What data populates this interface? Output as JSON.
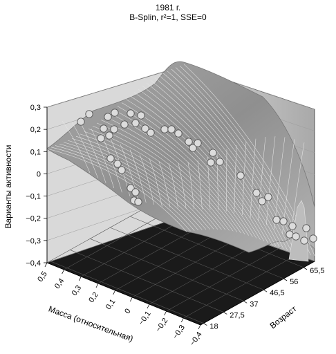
{
  "chart_data": {
    "type": "surface3d",
    "title": "1981 г.",
    "subtitle": "B-Splin, r²=1,  SSE=0",
    "zlabel": "Варианты активности",
    "xlabel": "Масса (относительная)",
    "ylabel": "Возраст",
    "z_ticks": [
      "0,3",
      "0,2",
      "0,1",
      "0",
      "−0,1",
      "−0,2",
      "−0,3",
      "−0,4"
    ],
    "x_ticks": [
      "0,5",
      "0,4",
      "0,3",
      "0,2",
      "0,1",
      "0",
      "−0,1",
      "−0,2",
      "−0,3",
      "−0,4"
    ],
    "y_ticks": [
      "18",
      "27,5",
      "37",
      "46,5",
      "56",
      "65,5"
    ],
    "zlim": [
      -0.4,
      0.3
    ],
    "xlim": [
      -0.4,
      0.5
    ],
    "ylim": [
      18,
      65.5
    ],
    "grid": true,
    "colors": {
      "surface": "#9a9a9a",
      "mesh": "#e8e8e8",
      "floor": "#1a1a1a",
      "wall": "#c9c9c9",
      "points": "#dcdcdc"
    }
  }
}
